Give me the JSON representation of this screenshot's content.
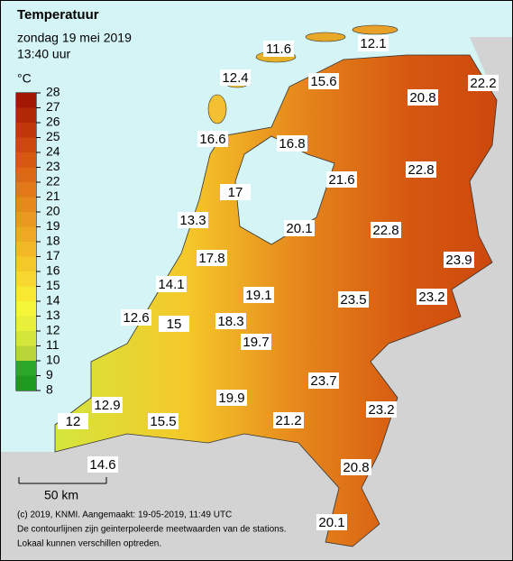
{
  "header": {
    "title": "Temperatuur",
    "date": "zondag 19 mei 2019",
    "time": "13:40 uur"
  },
  "legend": {
    "unit": "°C",
    "ticks": [
      8,
      9,
      10,
      11,
      12,
      13,
      14,
      15,
      16,
      17,
      18,
      19,
      20,
      21,
      22,
      23,
      24,
      25,
      26,
      27,
      28
    ],
    "colors": [
      "#1e9a1e",
      "#2aa82a",
      "#b8d63a",
      "#d4e63c",
      "#e8f03c",
      "#f5f53a",
      "#f8e832",
      "#f8d830",
      "#f5c82a",
      "#f2b828",
      "#eea824",
      "#ea9820",
      "#e6881c",
      "#e27818",
      "#dc6814",
      "#d65810",
      "#cc480c",
      "#c03808",
      "#b02806",
      "#a01804"
    ]
  },
  "stations": [
    11.6,
    12.1,
    12.4,
    15.6,
    20.8,
    22.2,
    16.6,
    16.8,
    21.6,
    22.8,
    17.0,
    13.3,
    20.1,
    22.8,
    23.9,
    17.8,
    14.1,
    19.1,
    23.5,
    23.2,
    12.6,
    15.0,
    18.3,
    19.7,
    23.7,
    12.9,
    19.9,
    23.2,
    12.0,
    15.5,
    21.2,
    14.6,
    20.8,
    20.1
  ],
  "scale": "50 km",
  "footer": [
    "(c) 2019, KNMI. Aangemaakt: 19-05-2019, 11:49 UTC",
    "De contourlijnen zijn geinterpoleerde meetwaarden van de stations.",
    "Lokaal kunnen verschillen optreden."
  ]
}
